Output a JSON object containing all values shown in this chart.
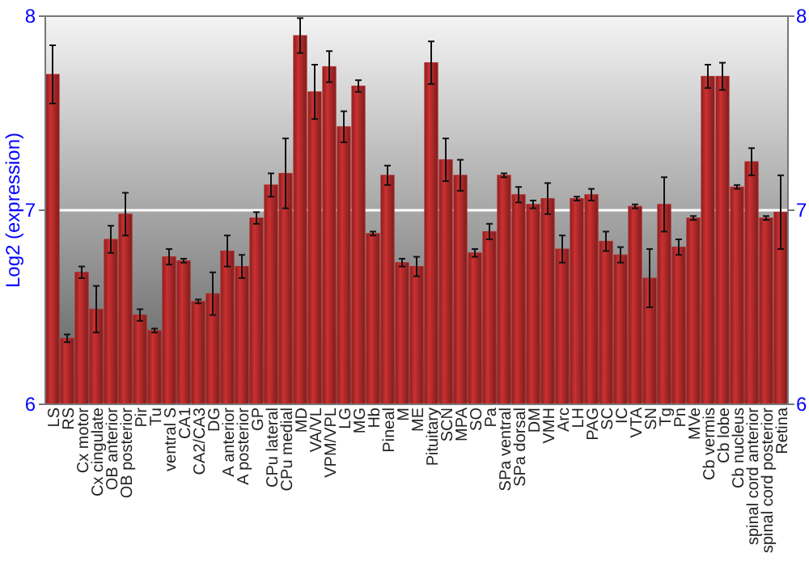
{
  "chart_data": {
    "type": "bar",
    "ylabel": "Log2 (expression)",
    "categories": [
      "LS",
      "RS",
      "Cx motor",
      "Cx cingulate",
      "OB anterior",
      "OB posterior",
      "Pir",
      "Tu",
      "ventral S",
      "CA1",
      "CA2/CA3",
      "DG",
      "A anterior",
      "A posterior",
      "GP",
      "CPu lateral",
      "CPu medial",
      "MD",
      "VA/VL",
      "VPM/VPL",
      "LG",
      "MG",
      "Hb",
      "Pineal",
      "M",
      "ME",
      "Pituitary",
      "SCN",
      "MPA",
      "SO",
      "Pa",
      "SPa ventral",
      "SPa dorsal",
      "DM",
      "VMH",
      "Arc",
      "LH",
      "PAG",
      "SC",
      "IC",
      "VTA",
      "SN",
      "Tg",
      "Pn",
      "MVe",
      "Cb vermis",
      "Cb lobe",
      "Cb nucleus",
      "spinal cord anterior",
      "spinal cord posterior",
      "Retina"
    ],
    "values": [
      7.7,
      6.34,
      6.68,
      6.49,
      6.85,
      6.98,
      6.46,
      6.38,
      6.76,
      6.74,
      6.53,
      6.57,
      6.79,
      6.71,
      6.96,
      7.13,
      7.19,
      7.9,
      7.61,
      7.74,
      7.43,
      7.64,
      6.88,
      7.18,
      6.73,
      6.71,
      7.76,
      7.26,
      7.18,
      6.78,
      6.89,
      7.18,
      7.08,
      7.03,
      7.06,
      6.8,
      7.06,
      7.08,
      6.84,
      6.77,
      7.02,
      6.65,
      7.03,
      6.81,
      6.96,
      7.69,
      7.69,
      7.12,
      7.25,
      6.96,
      6.99
    ],
    "errors": [
      0.15,
      0.02,
      0.03,
      0.12,
      0.07,
      0.11,
      0.03,
      0.01,
      0.04,
      0.01,
      0.01,
      0.11,
      0.08,
      0.06,
      0.03,
      0.06,
      0.18,
      0.09,
      0.14,
      0.08,
      0.08,
      0.03,
      0.01,
      0.05,
      0.02,
      0.05,
      0.11,
      0.11,
      0.08,
      0.02,
      0.04,
      0.01,
      0.04,
      0.02,
      0.08,
      0.07,
      0.01,
      0.03,
      0.05,
      0.04,
      0.01,
      0.15,
      0.14,
      0.04,
      0.01,
      0.06,
      0.07,
      0.01,
      0.07,
      0.01,
      0.19
    ],
    "color": "#b22a2a",
    "ylim": [
      6,
      8
    ],
    "yticks": [
      6,
      7,
      8
    ],
    "y2lim": [
      6,
      8
    ],
    "y2ticks": [
      6,
      7,
      8
    ],
    "grid": "y"
  }
}
